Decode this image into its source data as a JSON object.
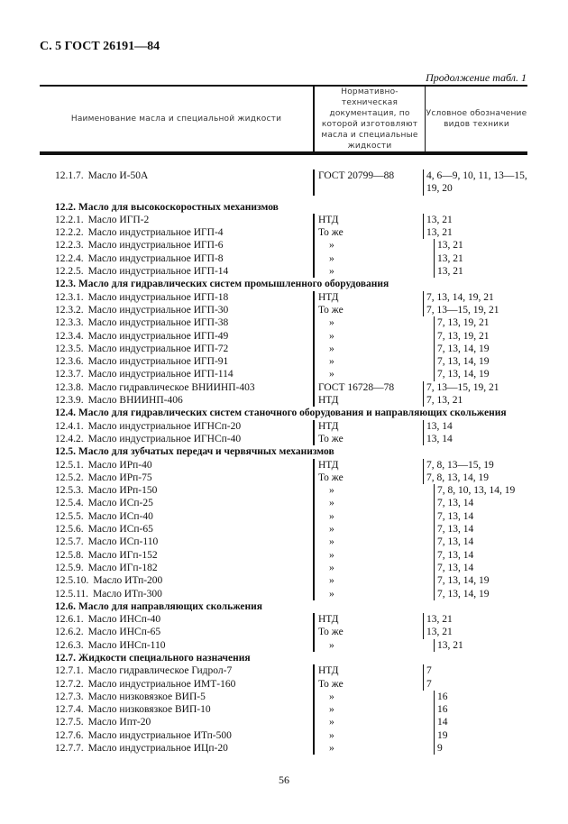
{
  "header": "С. 5 ГОСТ 26191—84",
  "continuation": "Продолжение табл. 1",
  "columns": [
    "Наименование масла и специальной жидкости",
    "Нормативно-техническая документация, по которой изготовляют масла и специальные жидкости",
    "Условное обозначение видов техники"
  ],
  "rows": [
    {
      "num": "12.1.7.",
      "name": "Масло И-50А",
      "doc": "ГОСТ 20799—88",
      "codes": "4, 6—9, 10, 11, 13—15, 19, 20"
    },
    {
      "section": "12.2. Масло для высокоскоростных механизмов"
    },
    {
      "num": "12.2.1.",
      "name": "Масло ИГП-2",
      "doc": "НТД",
      "codes": "13, 21"
    },
    {
      "num": "12.2.2.",
      "name": "Масло индустриальное ИГП-4",
      "doc": "То же",
      "codes": "13, 21"
    },
    {
      "num": "12.2.3.",
      "name": "Масло индустриальное ИГП-6",
      "doc": "»",
      "codes": "13, 21"
    },
    {
      "num": "12.2.4.",
      "name": "Масло индустриальное ИГП-8",
      "doc": "»",
      "codes": "13, 21"
    },
    {
      "num": "12.2.5.",
      "name": "Масло индустриальное ИГП-14",
      "doc": "»",
      "codes": "13, 21"
    },
    {
      "section": "12.3. Масло для гидравлических систем промышленного оборудования"
    },
    {
      "num": "12.3.1.",
      "name": "Масло индустриальное ИГП-18",
      "doc": "НТД",
      "codes": "7, 13, 14, 19, 21"
    },
    {
      "num": "12.3.2.",
      "name": "Масло индустриальное ИГП-30",
      "doc": "То же",
      "codes": "7, 13—15, 19, 21"
    },
    {
      "num": "12.3.3.",
      "name": "Масло индустриальное ИГП-38",
      "doc": "»",
      "codes": "7, 13, 19, 21"
    },
    {
      "num": "12.3.4.",
      "name": "Масло индустриальное ИГП-49",
      "doc": "»",
      "codes": "7, 13, 19, 21"
    },
    {
      "num": "12.3.5.",
      "name": "Масло индустриальное ИГП-72",
      "doc": "»",
      "codes": "7, 13, 14, 19"
    },
    {
      "num": "12.3.6.",
      "name": "Масло индустриальное ИГП-91",
      "doc": "»",
      "codes": "7, 13, 14, 19"
    },
    {
      "num": "12.3.7.",
      "name": "Масло индустриальное ИГП-114",
      "doc": "»",
      "codes": "7, 13, 14, 19"
    },
    {
      "num": "12.3.8.",
      "name": "Масло гидравлическое ВНИИНП-403",
      "doc": "ГОСТ 16728—78",
      "codes": "7, 13—15, 19, 21"
    },
    {
      "num": "12.3.9.",
      "name": "Масло ВНИИНП-406",
      "doc": "НТД",
      "codes": "7, 13, 21"
    },
    {
      "section": "12.4. Масло для гидравлических систем станочного оборудования и направляющих скольжения"
    },
    {
      "num": "12.4.1.",
      "name": "Масло индустриальное ИГНСп-20",
      "doc": "НТД",
      "codes": "13, 14"
    },
    {
      "num": "12.4.2.",
      "name": "Масло индустриальное ИГНСп-40",
      "doc": "То же",
      "codes": "13, 14"
    },
    {
      "section": "12.5. Масло для зубчатых передач и червячных механизмов"
    },
    {
      "num": "12.5.1.",
      "name": "Масло ИРп-40",
      "doc": "НТД",
      "codes": "7, 8, 13—15, 19"
    },
    {
      "num": "12.5.2.",
      "name": "Масло ИРп-75",
      "doc": "То же",
      "codes": "7, 8, 13, 14, 19"
    },
    {
      "num": "12.5.3.",
      "name": "Масло ИРп-150",
      "doc": "»",
      "codes": "7, 8, 10, 13, 14, 19"
    },
    {
      "num": "12.5.4.",
      "name": "Масло ИСп-25",
      "doc": "»",
      "codes": "7, 13, 14"
    },
    {
      "num": "12.5.5.",
      "name": "Масло ИСп-40",
      "doc": "»",
      "codes": "7, 13, 14"
    },
    {
      "num": "12.5.6.",
      "name": "Масло ИСп-65",
      "doc": "»",
      "codes": "7, 13, 14"
    },
    {
      "num": "12.5.7.",
      "name": "Масло ИСп-110",
      "doc": "»",
      "codes": "7, 13, 14"
    },
    {
      "num": "12.5.8.",
      "name": "Масло ИГп-152",
      "doc": "»",
      "codes": "7, 13, 14"
    },
    {
      "num": "12.5.9.",
      "name": "Масло ИГп-182",
      "doc": "»",
      "codes": "7, 13, 14"
    },
    {
      "num": "12.5.10.",
      "name": "Масло ИТп-200",
      "doc": "»",
      "codes": "7, 13, 14, 19"
    },
    {
      "num": "12.5.11.",
      "name": "Масло ИТп-300",
      "doc": "»",
      "codes": "7, 13, 14, 19"
    },
    {
      "section": "12.6. Масло для направляющих скольжения"
    },
    {
      "num": "12.6.1.",
      "name": "Масло ИНСп-40",
      "doc": "НТД",
      "codes": "13, 21"
    },
    {
      "num": "12.6.2.",
      "name": "Масло ИНСп-65",
      "doc": "То же",
      "codes": "13, 21"
    },
    {
      "num": "12.6.3.",
      "name": "Масло ИНСп-110",
      "doc": "»",
      "codes": "13, 21"
    },
    {
      "section": "12.7. Жидкости специального назначения"
    },
    {
      "num": "12.7.1.",
      "name": "Масло гидравлическое Гидрол-7",
      "doc": "НТД",
      "codes": "7"
    },
    {
      "num": "12.7.2.",
      "name": "Масло индустриальное ИМТ-160",
      "doc": "То же",
      "codes": "7"
    },
    {
      "num": "12.7.3.",
      "name": "Масло низковязкое ВИП-5",
      "doc": "»",
      "codes": "16"
    },
    {
      "num": "12.7.4.",
      "name": "Масло низковязкое ВИП-10",
      "doc": "»",
      "codes": "16"
    },
    {
      "num": "12.7.5.",
      "name": "Масло Ипт-20",
      "doc": "»",
      "codes": "14"
    },
    {
      "num": "12.7.6.",
      "name": "Масло индустриальное ИТп-500",
      "doc": "»",
      "codes": "19"
    },
    {
      "num": "12.7.7.",
      "name": "Масло индустриальное ИЦп-20",
      "doc": "»",
      "codes": "9"
    }
  ],
  "page_number": "56"
}
